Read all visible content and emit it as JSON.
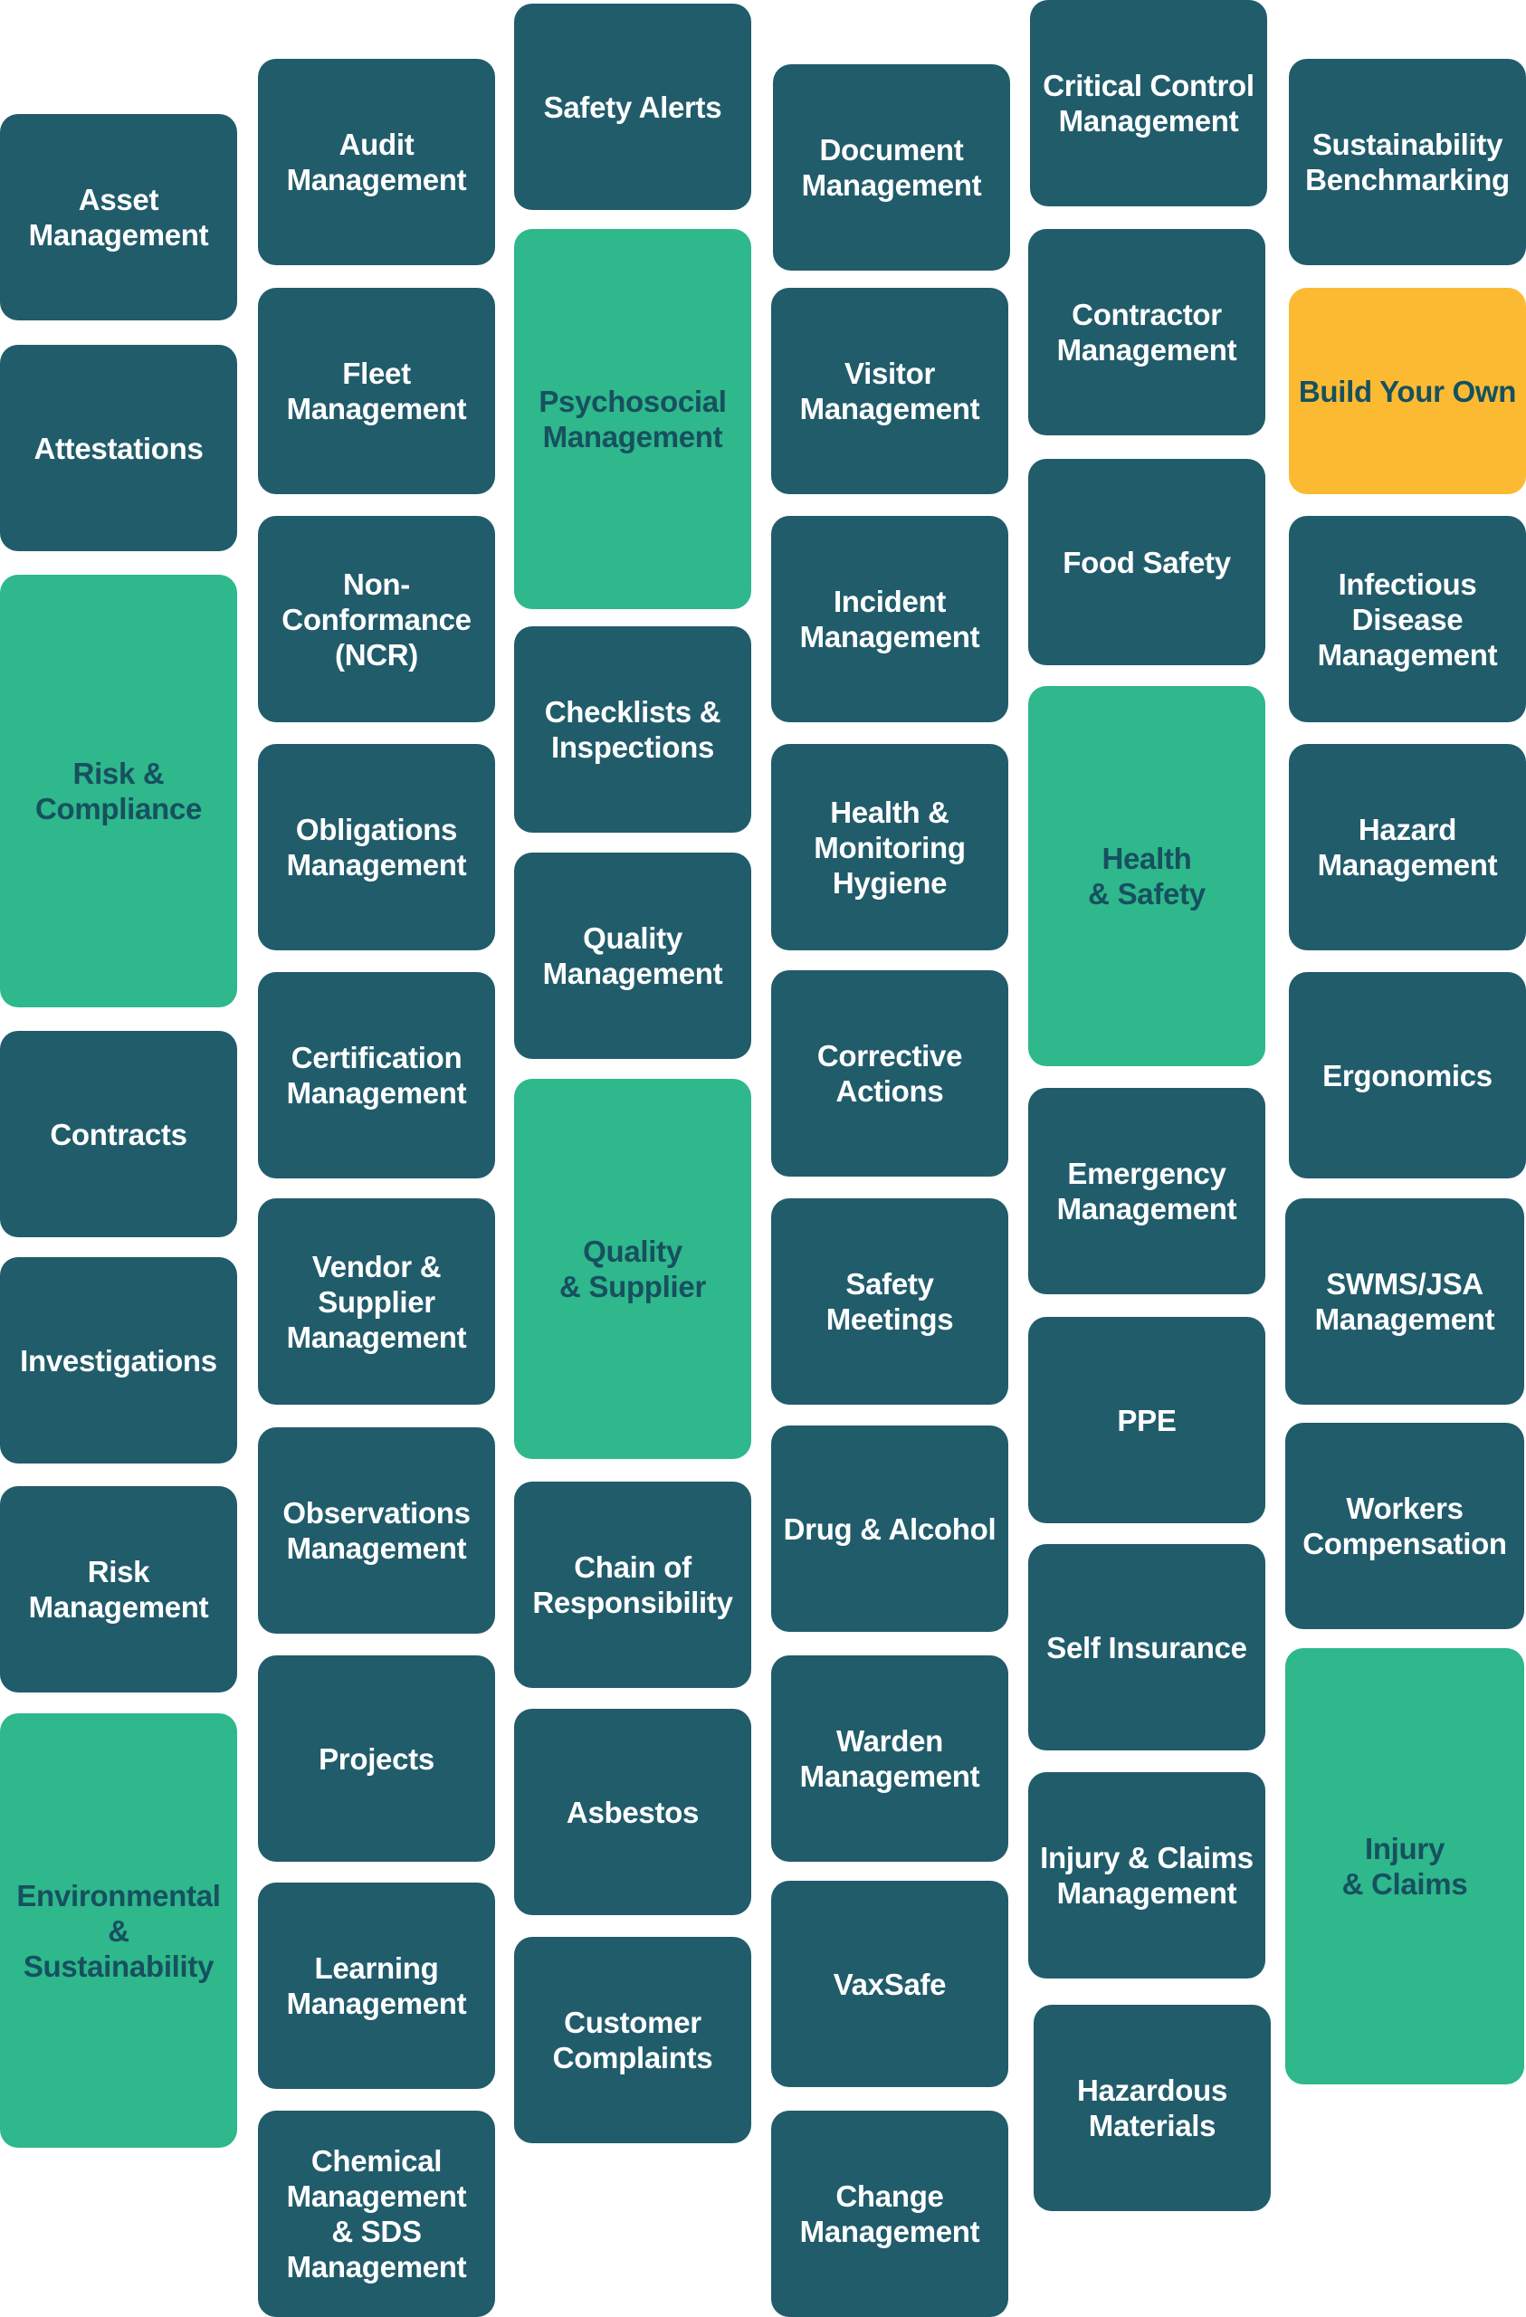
{
  "colors": {
    "module_tile": "#215c6b",
    "category_tile": "#2eb88c",
    "highlight_tile": "#fbba31",
    "tile_text_light": "#ffffff",
    "tile_text_dark": "#17505f"
  },
  "columns": [
    {
      "tiles": [
        {
          "label": "Asset\nManagement",
          "style": "dark"
        },
        {
          "label": "Attestations",
          "style": "dark"
        },
        {
          "label": "Risk &\nCompliance",
          "style": "green"
        },
        {
          "label": "Contracts",
          "style": "dark"
        },
        {
          "label": "Investigations",
          "style": "dark"
        },
        {
          "label": "Risk\nManagement",
          "style": "dark"
        },
        {
          "label": "Environmental\n& Sustainability",
          "style": "green"
        }
      ]
    },
    {
      "tiles": [
        {
          "label": "Audit\nManagement",
          "style": "dark"
        },
        {
          "label": "Fleet\nManagement",
          "style": "dark"
        },
        {
          "label": "Non-\nConformance\n(NCR)",
          "style": "dark"
        },
        {
          "label": "Obligations\nManagement",
          "style": "dark"
        },
        {
          "label": "Certification\nManagement",
          "style": "dark"
        },
        {
          "label": "Vendor &\nSupplier\nManagement",
          "style": "dark"
        },
        {
          "label": "Observations\nManagement",
          "style": "dark"
        },
        {
          "label": "Projects",
          "style": "dark"
        },
        {
          "label": "Learning\nManagement",
          "style": "dark"
        },
        {
          "label": "Chemical\nManagement\n& SDS\nManagement",
          "style": "dark"
        }
      ]
    },
    {
      "tiles": [
        {
          "label": "Safety Alerts",
          "style": "dark"
        },
        {
          "label": "Psychosocial\nManagement",
          "style": "green"
        },
        {
          "label": "Checklists &\nInspections",
          "style": "dark"
        },
        {
          "label": "Quality\nManagement",
          "style": "dark"
        },
        {
          "label": "Quality\n& Supplier",
          "style": "green"
        },
        {
          "label": "Chain of\nResponsibility",
          "style": "dark"
        },
        {
          "label": "Asbestos",
          "style": "dark"
        },
        {
          "label": "Customer\nComplaints",
          "style": "dark"
        }
      ]
    },
    {
      "tiles": [
        {
          "label": "Document\nManagement",
          "style": "dark"
        },
        {
          "label": "Visitor\nManagement",
          "style": "dark"
        },
        {
          "label": "Incident\nManagement",
          "style": "dark"
        },
        {
          "label": "Health &\nMonitoring\nHygiene",
          "style": "dark"
        },
        {
          "label": "Corrective\nActions",
          "style": "dark"
        },
        {
          "label": "Safety Meetings",
          "style": "dark"
        },
        {
          "label": "Drug & Alcohol",
          "style": "dark"
        },
        {
          "label": "Warden\nManagement",
          "style": "dark"
        },
        {
          "label": "VaxSafe",
          "style": "dark"
        },
        {
          "label": "Change\nManagement",
          "style": "dark"
        }
      ]
    },
    {
      "tiles": [
        {
          "label": "Critical Control\nManagement",
          "style": "dark"
        },
        {
          "label": "Contractor\nManagement",
          "style": "dark"
        },
        {
          "label": "Food Safety",
          "style": "dark"
        },
        {
          "label": "Health\n& Safety",
          "style": "green"
        },
        {
          "label": "Emergency\nManagement",
          "style": "dark"
        },
        {
          "label": "PPE",
          "style": "dark"
        },
        {
          "label": "Self Insurance",
          "style": "dark"
        },
        {
          "label": "Injury & Claims\nManagement",
          "style": "dark"
        },
        {
          "label": "Hazardous\nMaterials",
          "style": "dark"
        }
      ]
    },
    {
      "tiles": [
        {
          "label": "Sustainability\nBenchmarking",
          "style": "dark"
        },
        {
          "label": "Build Your Own",
          "style": "gold"
        },
        {
          "label": "Infectious\nDisease\nManagement",
          "style": "dark"
        },
        {
          "label": "Hazard\nManagement",
          "style": "dark"
        },
        {
          "label": "Ergonomics",
          "style": "dark"
        },
        {
          "label": "SWMS/JSA\nManagement",
          "style": "dark"
        },
        {
          "label": "Workers\nCompensation",
          "style": "dark"
        },
        {
          "label": "Injury\n& Claims",
          "style": "green"
        }
      ]
    }
  ]
}
